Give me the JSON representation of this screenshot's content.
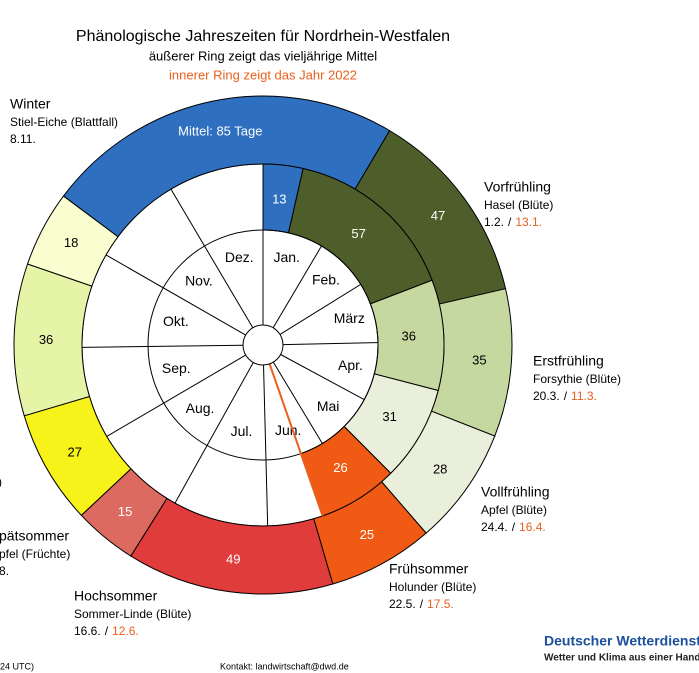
{
  "chart_data": {
    "type": "ring",
    "title": "Phänologische Jahreszeiten für Nordrhein-Westfalen",
    "subtitle": "äußerer Ring zeigt das vieljährige Mittel",
    "subtitle_2022": "innerer Ring zeigt das Jahr 2022",
    "months": [
      "Jan.",
      "Feb.",
      "März",
      "Apr.",
      "Mai",
      "Jun.",
      "Jul.",
      "Aug.",
      "Sep.",
      "Okt.",
      "Nov.",
      "Dez."
    ],
    "series": [
      {
        "values": [
          85,
          47,
          35,
          28,
          25,
          49,
          15,
          27,
          36,
          18
        ],
        "value_labels": [
          "Mittel: 85 Tage",
          "47",
          "35",
          "28",
          "25",
          "49",
          "15",
          "27",
          "36",
          "18"
        ],
        "colors": [
          "#2f6fc0",
          "#4e5e2a",
          "#c4d8a0",
          "#eaefdc",
          "#f05a14",
          "#e03c3c",
          "#dd6a60",
          "#f6f21a",
          "#e6f4a8",
          "#fafdd0"
        ]
      },
      {
        "values": [
          13,
          57,
          36,
          31,
          26
        ],
        "colors": [
          "#2f6fc0",
          "#4e5e2a",
          "#c4d8a0",
          "#eaefdc",
          "#f05a14"
        ]
      }
    ],
    "date_separator": "/",
    "annotations": [
      {
        "name": "Winter",
        "plant": "Stiel-Eiche (Blattfall)",
        "date_mean": "8.11."
      },
      {
        "name": "Vorfrühling",
        "plant": "Hasel (Blüte)",
        "date_mean": "1.2.",
        "date_2022": "13.1."
      },
      {
        "name": "Erstfrühling",
        "plant": "Forsythie (Blüte)",
        "date_mean": "20.3.",
        "date_2022": "11.3."
      },
      {
        "name": "Vollfrühling",
        "plant": "Apfel (Blüte)",
        "date_mean": "24.4.",
        "date_2022": "16.4."
      },
      {
        "name": "Frühsommer",
        "plant": "Holunder (Blüte)",
        "date_mean": "22.5.",
        "date_2022": "17.5."
      },
      {
        "name": "Hochsommer",
        "plant": "Sommer-Linde (Blüte)",
        "date_mean": "16.6.",
        "date_2022": "12.6."
      },
      {
        "name": "pätsommer",
        "plant": "pfel (Früchte)",
        "date_mean": "8."
      }
    ],
    "fragment": ")",
    "footer_left": "24 UTC)",
    "contact": "Kontakt: landwirtschaft@dwd.de",
    "brand": "Deutscher Wetterdienst",
    "brand_tagline": "Wetter und Klima aus einer Hand"
  }
}
